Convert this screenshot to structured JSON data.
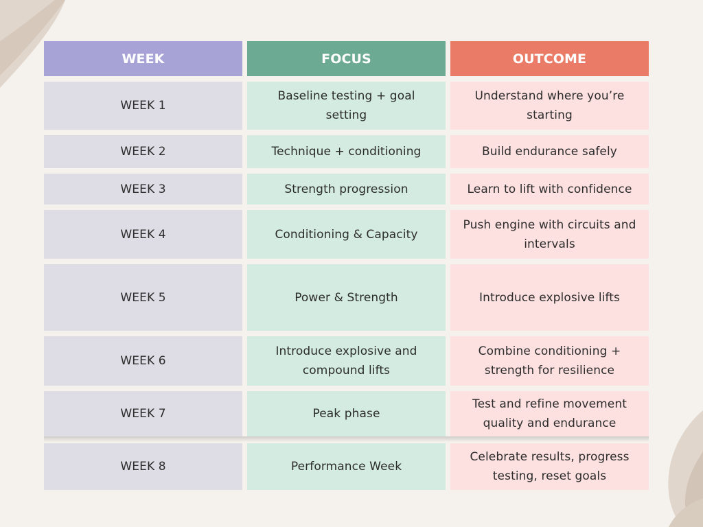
{
  "table": {
    "headers": [
      "WEEK",
      "FOCUS",
      "OUTCOME"
    ],
    "rows": [
      {
        "week": "WEEK 1",
        "focus": "Baseline testing + goal setting",
        "outcome": "Understand where you’re starting"
      },
      {
        "week": "WEEK 2",
        "focus": "Technique + conditioning",
        "outcome": "Build endurance safely"
      },
      {
        "week": "WEEK 3",
        "focus": "Strength progression",
        "outcome": "Learn to lift with confidence"
      },
      {
        "week": "WEEK 4",
        "focus": "Conditioning & Capacity",
        "outcome": "Push engine with circuits and intervals"
      },
      {
        "week": "WEEK 5",
        "focus": "Power & Strength",
        "outcome": "Introduce explosive lifts"
      },
      {
        "week": "WEEK 6",
        "focus": "Introduce explosive and compound lifts",
        "outcome": "Combine conditioning + strength for resilience"
      },
      {
        "week": "WEEK 7",
        "focus": "Peak phase",
        "outcome": "Test and refine movement quality and endurance"
      },
      {
        "week": "WEEK 8",
        "focus": "Performance Week",
        "outcome": "Celebrate results, progress testing, reset goals"
      }
    ]
  },
  "colors": {
    "background": "#f5f1ed",
    "week_header": "#a7a3d6",
    "focus_header": "#6daa94",
    "outcome_header": "#e97b67",
    "week_cell": "#dedde6",
    "focus_cell": "#d3ebe1",
    "outcome_cell": "#fde0e0"
  }
}
